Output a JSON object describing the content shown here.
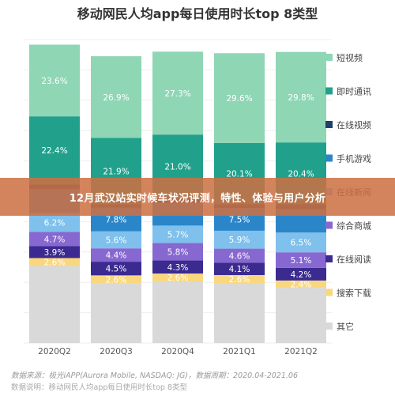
{
  "chart_data": {
    "type": "bar",
    "stacked": true,
    "percent": true,
    "title": "移动网民人均app每日使用时长top 8类型",
    "categories": [
      "2020Q2",
      "2020Q3",
      "2020Q4",
      "2021Q1",
      "2021Q2"
    ],
    "series": [
      {
        "name": "其它",
        "color": "#d9d9d9",
        "values": [
          null,
          null,
          null,
          null,
          null
        ]
      },
      {
        "name": "搜索下载",
        "color": "#f9d77e",
        "values": [
          2.6,
          2.6,
          2.6,
          2.6,
          2.4
        ]
      },
      {
        "name": "在线阅读",
        "color": "#3b2a8f",
        "values": [
          3.9,
          4.5,
          4.3,
          4.1,
          4.2
        ]
      },
      {
        "name": "综合商城",
        "color": "#8668d0",
        "values": [
          4.7,
          4.4,
          5.8,
          4.6,
          5.1
        ]
      },
      {
        "name": "在线新闻",
        "color": "#7fc0ec",
        "values": [
          6.2,
          5.6,
          5.7,
          5.9,
          6.5
        ]
      },
      {
        "name": "手机游戏",
        "color": "#2b86c9",
        "values": [
          null,
          7.8,
          null,
          7.5,
          null
        ]
      },
      {
        "name": "在线视频",
        "color": "#1f3f66",
        "values": [
          null,
          null,
          null,
          null,
          null
        ]
      },
      {
        "name": "即时通讯",
        "color": "#21a18c",
        "values": [
          22.4,
          21.9,
          21.0,
          20.1,
          20.4
        ]
      },
      {
        "name": "短视频",
        "color": "#8fd6b5",
        "values": [
          23.6,
          26.9,
          27.3,
          29.6,
          29.8
        ]
      }
    ],
    "legend_position": "right"
  },
  "banner": {
    "text": "12月武汉站实时候车状况评测，特性、体验与用户分析"
  },
  "footer": {
    "source": "数据来源：极光iAPP(Aurora Mobile, NASDAQ: JG)，数据周期：2020.04-2021.06",
    "caption": "数据说明：移动网民人均app每日使用时长top 8类型"
  }
}
